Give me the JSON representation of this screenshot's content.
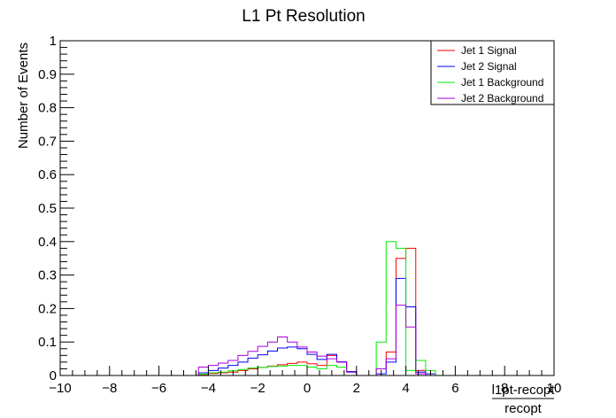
{
  "chart_data": {
    "type": "line",
    "style": "step-histogram",
    "title": "L1 Pt Resolution",
    "xlabel": {
      "numerator": "l1pt-recopt",
      "denominator": "recopt"
    },
    "ylabel": "Number of Events",
    "xlim": [
      -10,
      10
    ],
    "ylim": [
      0,
      1
    ],
    "bin_width": 0.4,
    "x_start": -10,
    "x_ticks": [
      "−10",
      "−8",
      "−6",
      "−4",
      "−2",
      "0",
      "2",
      "4",
      "6",
      "8",
      "10"
    ],
    "y_ticks": [
      "0",
      "0.1",
      "0.2",
      "0.3",
      "0.4",
      "0.5",
      "0.6",
      "0.7",
      "0.8",
      "0.9",
      "1"
    ],
    "legend_position": "top-right",
    "series": [
      {
        "name": "Jet 1 Signal",
        "color": "#ff0000",
        "values": [
          0,
          0,
          0,
          0,
          0,
          0,
          0,
          0,
          0,
          0,
          0,
          0,
          0,
          0,
          0.003,
          0.006,
          0.008,
          0.01,
          0.015,
          0.02,
          0.024,
          0.028,
          0.032,
          0.036,
          0.04,
          0.035,
          0.03,
          0.06,
          0.04,
          0.012,
          0,
          0,
          0.02,
          0.07,
          0.35,
          0.38,
          0.015,
          0,
          0,
          0,
          0,
          0,
          0,
          0,
          0,
          0,
          0,
          0,
          0,
          0
        ]
      },
      {
        "name": "Jet 2 Signal",
        "color": "#0000ff",
        "values": [
          0,
          0,
          0,
          0,
          0,
          0,
          0,
          0,
          0,
          0,
          0,
          0,
          0,
          0,
          0.008,
          0.015,
          0.022,
          0.03,
          0.04,
          0.052,
          0.062,
          0.073,
          0.082,
          0.085,
          0.08,
          0.063,
          0.048,
          0.063,
          0.041,
          0.012,
          0,
          0,
          0.005,
          0.04,
          0.29,
          0.205,
          0.01,
          0.005,
          0,
          0,
          0,
          0,
          0,
          0,
          0,
          0,
          0,
          0,
          0,
          0
        ]
      },
      {
        "name": "Jet 1 Background",
        "color": "#00ee00",
        "values": [
          0,
          0,
          0,
          0,
          0,
          0,
          0,
          0,
          0,
          0,
          0,
          0,
          0,
          0,
          0.004,
          0.008,
          0.01,
          0.014,
          0.018,
          0.022,
          0.024,
          0.027,
          0.028,
          0.03,
          0.03,
          0.025,
          0.02,
          0.03,
          0.025,
          0.01,
          0,
          0,
          0.1,
          0.4,
          0.38,
          0.015,
          0.045,
          0.015,
          0,
          0,
          0,
          0,
          0,
          0,
          0,
          0,
          0,
          0,
          0,
          0
        ]
      },
      {
        "name": "Jet 2 Background",
        "color": "#aa00dd",
        "values": [
          0,
          0,
          0,
          0,
          0,
          0,
          0,
          0,
          0,
          0,
          0,
          0,
          0,
          0,
          0.025,
          0.03,
          0.037,
          0.045,
          0.06,
          0.072,
          0.087,
          0.1,
          0.115,
          0.1,
          0.085,
          0.07,
          0.058,
          0.05,
          0.04,
          0.01,
          0,
          0,
          0.02,
          0.05,
          0.21,
          0.145,
          0.005,
          0,
          0,
          0,
          0,
          0,
          0,
          0,
          0,
          0,
          0,
          0,
          0,
          0
        ]
      }
    ]
  }
}
